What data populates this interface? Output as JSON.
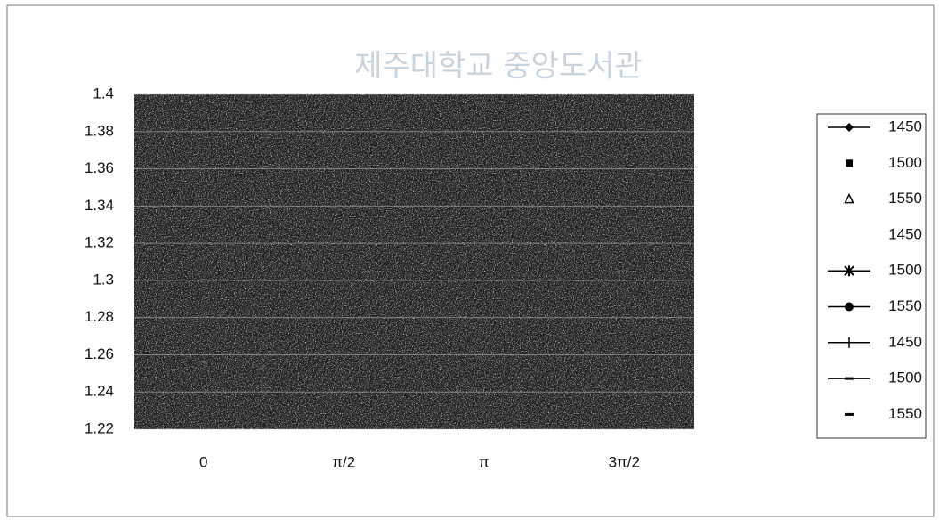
{
  "chart_data": {
    "type": "line",
    "watermark": "제주대학교 중앙도서관",
    "categories": [
      "0",
      "π/2",
      "π",
      "3π/2"
    ],
    "ylim": [
      1.22,
      1.4
    ],
    "yticks": [
      1.22,
      1.24,
      1.26,
      1.28,
      1.3,
      1.32,
      1.34,
      1.36,
      1.38,
      1.4
    ],
    "grid": true,
    "legend": "right",
    "series": [
      {
        "name": "1450",
        "color": "#000000",
        "marker": "diamond",
        "line": true,
        "values": [
          null,
          null,
          null,
          null
        ]
      },
      {
        "name": "1500",
        "color": "#000000",
        "marker": "square",
        "line": false,
        "values": [
          null,
          null,
          null,
          null
        ]
      },
      {
        "name": "1550",
        "color": "#000000",
        "marker": "triangle",
        "line": false,
        "values": [
          null,
          null,
          null,
          null
        ]
      },
      {
        "name": "1450",
        "color": "#000000",
        "marker": "none",
        "line": false,
        "values": [
          null,
          null,
          null,
          null
        ]
      },
      {
        "name": "1500",
        "color": "#000000",
        "marker": "star",
        "line": true,
        "values": [
          null,
          null,
          null,
          null
        ]
      },
      {
        "name": "1550",
        "color": "#000000",
        "marker": "circle",
        "line": true,
        "values": [
          null,
          null,
          null,
          null
        ]
      },
      {
        "name": "1450",
        "color": "#000000",
        "marker": "plus",
        "line": true,
        "values": [
          null,
          null,
          null,
          null
        ]
      },
      {
        "name": "1500",
        "color": "#000000",
        "marker": "dash",
        "line": true,
        "values": [
          null,
          null,
          null,
          null
        ]
      },
      {
        "name": "1550",
        "color": "#000000",
        "marker": "dash",
        "line": false,
        "values": [
          null,
          null,
          null,
          null
        ]
      }
    ]
  }
}
